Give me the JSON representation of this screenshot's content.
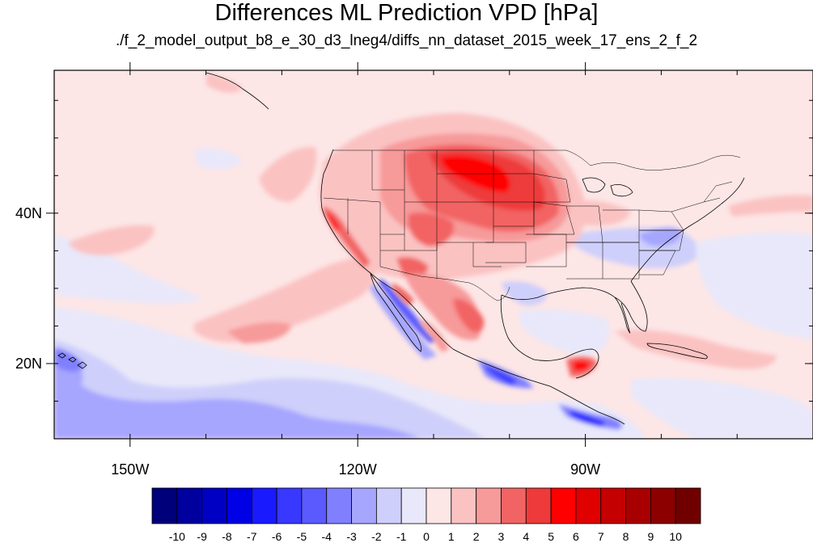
{
  "title": "Differences ML Prediction VPD [hPa]",
  "subtitle": "./f_2_model_output_b8_e_30_d3_lneg4/diffs_nn_dataset_2015_week_17_ens_2_f_2",
  "map": {
    "lon_range": [
      -160,
      -60
    ],
    "lat_range": [
      10,
      59
    ],
    "lon_ticks": [
      {
        "value": -150,
        "label": "150W"
      },
      {
        "value": -120,
        "label": "120W"
      },
      {
        "value": -90,
        "label": "90W"
      }
    ],
    "lat_ticks": [
      {
        "value": 40,
        "label": "40N"
      },
      {
        "value": 20,
        "label": "20N"
      }
    ]
  },
  "colorbar": {
    "labels": [
      "-10",
      "-9",
      "-8",
      "-7",
      "-6",
      "-5",
      "-4",
      "-3",
      "-2",
      "-1",
      "0",
      "1",
      "2",
      "3",
      "4",
      "5",
      "6",
      "7",
      "8",
      "9",
      "10"
    ],
    "colors": [
      "#00007a",
      "#00009e",
      "#0000c4",
      "#0000e6",
      "#1a1aff",
      "#3838ff",
      "#5a5aff",
      "#8080ff",
      "#a6a6ff",
      "#cfcffb",
      "#e8e8fa",
      "#fde6e6",
      "#fbc2c2",
      "#f79a9a",
      "#f26464",
      "#ee3a3a",
      "#ff0000",
      "#e00000",
      "#c40000",
      "#a80000",
      "#8c0000",
      "#700000"
    ]
  }
}
